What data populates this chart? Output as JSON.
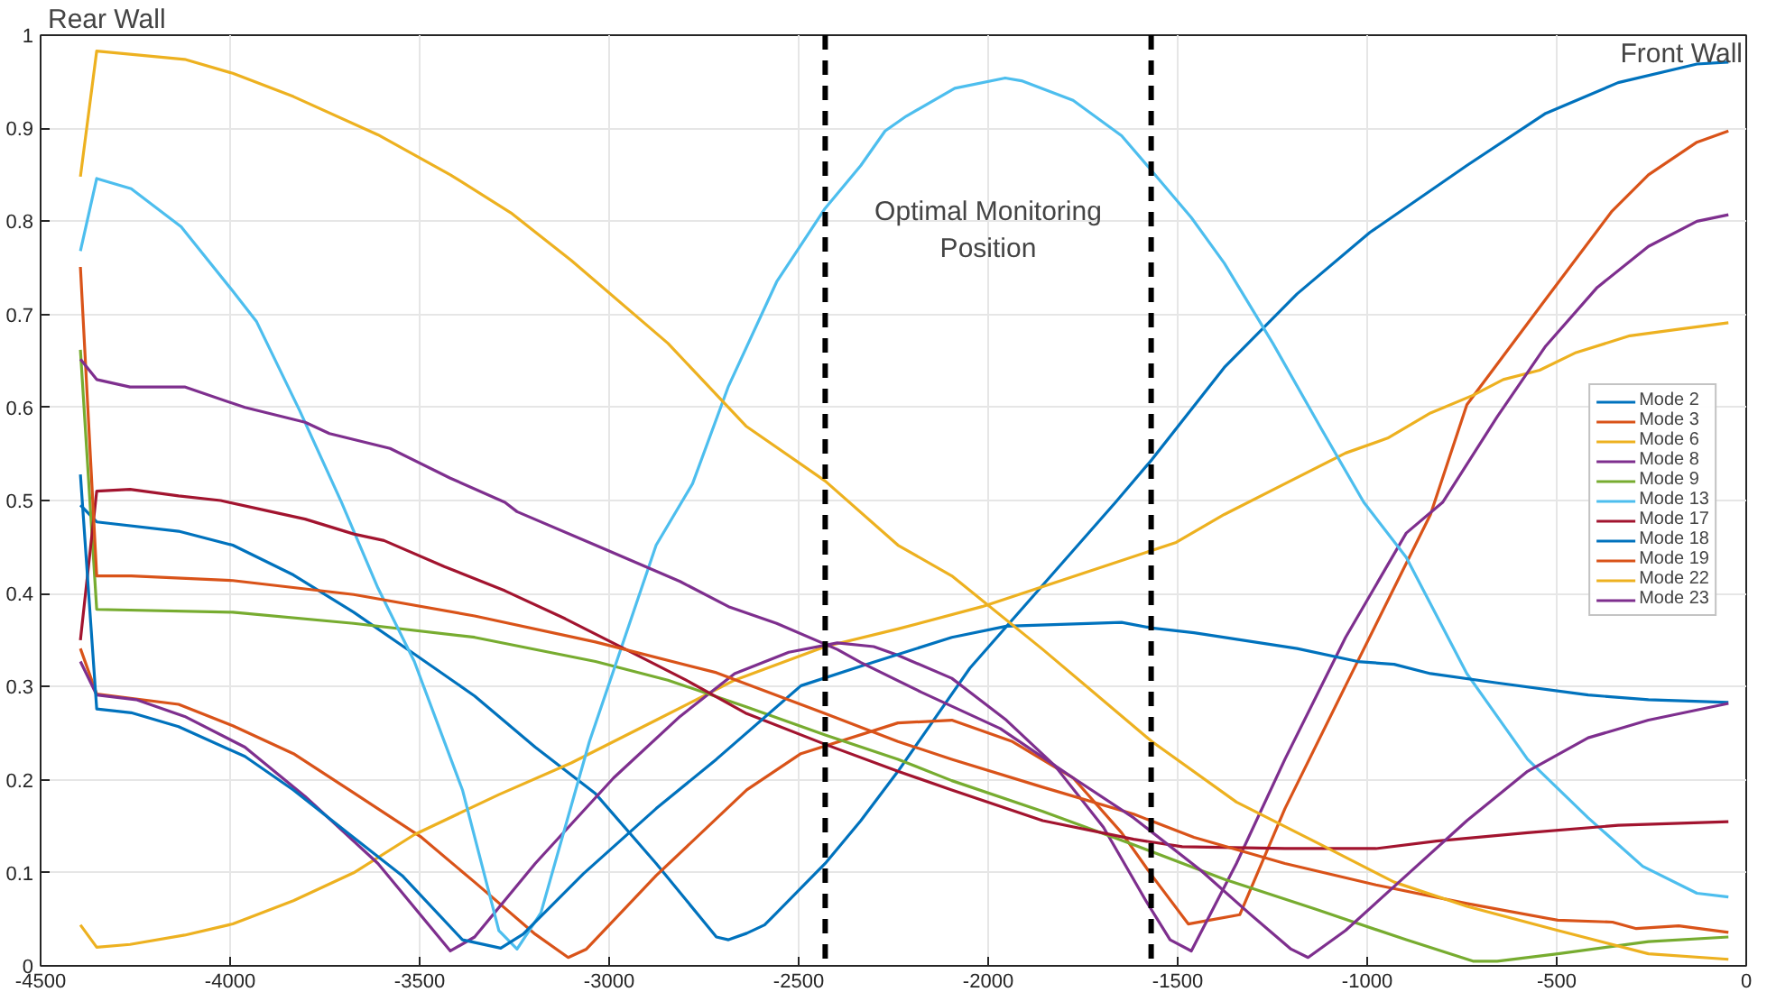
{
  "chart_data": {
    "type": "line",
    "xlim": [
      -4500,
      0
    ],
    "ylim": [
      0,
      1
    ],
    "xticks": [
      -4500,
      -4000,
      -3500,
      -3000,
      -2500,
      -2000,
      -1500,
      -1000,
      -500,
      0
    ],
    "yticks": [
      0,
      0.1,
      0.2,
      0.3,
      0.4,
      0.5,
      0.6,
      0.7,
      0.8,
      0.9,
      1
    ],
    "grid": true,
    "legend": "right",
    "annotations": [
      "Rear Wall",
      "Front Wall",
      "Optimal Monitoring Position"
    ],
    "ref_lines": [
      {
        "axis": "x",
        "value": -2430,
        "color": "#000000",
        "line_style": "dashed"
      },
      {
        "axis": "x",
        "value": -1570,
        "color": "#000000",
        "line_style": "dashed"
      }
    ],
    "series": [
      {
        "name": "Mode 2",
        "color": "#0072bd",
        "x": [
          -4395,
          -4352,
          -4136,
          -3993,
          -3833,
          -3674,
          -3514,
          -3355,
          -3195,
          -3036,
          -2876,
          -2717,
          -2685,
          -2637,
          -2590,
          -2558,
          -2430,
          -2336,
          -2238,
          -2048,
          -1664,
          -1568,
          -1377,
          -1185,
          -993,
          -737,
          -529,
          -338,
          -130,
          -47
        ],
        "values": [
          0.495,
          0.477,
          0.467,
          0.452,
          0.42,
          0.38,
          0.335,
          0.29,
          0.235,
          0.185,
          0.11,
          0.031,
          0.028,
          0.035,
          0.044,
          0.057,
          0.11,
          0.156,
          0.209,
          0.32,
          0.498,
          0.544,
          0.643,
          0.722,
          0.788,
          0.86,
          0.916,
          0.949,
          0.969,
          0.971
        ]
      },
      {
        "name": "Mode 3",
        "color": "#d95319",
        "x": [
          -4395,
          -4352,
          -4136,
          -3993,
          -3833,
          -3674,
          -3498,
          -3355,
          -3195,
          -3108,
          -3060,
          -2876,
          -2637,
          -2494,
          -2238,
          -2096,
          -1936,
          -1776,
          -1648,
          -1568,
          -1472,
          -1336,
          -1217,
          -1057,
          -833,
          -737,
          -537,
          -354,
          -258,
          -130,
          -47
        ],
        "values": [
          0.341,
          0.292,
          0.281,
          0.258,
          0.228,
          0.186,
          0.139,
          0.09,
          0.034,
          0.009,
          0.018,
          0.097,
          0.189,
          0.228,
          0.261,
          0.264,
          0.241,
          0.202,
          0.143,
          0.097,
          0.045,
          0.055,
          0.169,
          0.301,
          0.485,
          0.603,
          0.712,
          0.811,
          0.85,
          0.885,
          0.897
        ]
      },
      {
        "name": "Mode 6",
        "color": "#edb120",
        "x": [
          -4395,
          -4352,
          -4264,
          -4120,
          -3993,
          -3833,
          -3674,
          -3514,
          -3291,
          -3100,
          -2876,
          -2669,
          -2430,
          -2238,
          -2016,
          -1696,
          -1504,
          -1377,
          -1217,
          -1057,
          -946,
          -833,
          -721,
          -641,
          -545,
          -449,
          -307,
          -179,
          -47
        ],
        "values": [
          0.044,
          0.02,
          0.023,
          0.033,
          0.045,
          0.07,
          0.1,
          0.141,
          0.184,
          0.218,
          0.264,
          0.307,
          0.343,
          0.362,
          0.386,
          0.429,
          0.455,
          0.485,
          0.518,
          0.551,
          0.567,
          0.594,
          0.613,
          0.63,
          0.64,
          0.659,
          0.677,
          0.684,
          0.691
        ]
      },
      {
        "name": "Mode 8",
        "color": "#7e2f8e",
        "x": [
          -4395,
          -4352,
          -4248,
          -4120,
          -3961,
          -3802,
          -3610,
          -3419,
          -3355,
          -3195,
          -2988,
          -2813,
          -2669,
          -2526,
          -2398,
          -2302,
          -2240,
          -2096,
          -1952,
          -1824,
          -1696,
          -1584,
          -1520,
          -1464,
          -1345,
          -1217,
          -1057,
          -897,
          -801,
          -657,
          -529,
          -393,
          -258,
          -130,
          -47
        ],
        "values": [
          0.327,
          0.291,
          0.286,
          0.268,
          0.235,
          0.182,
          0.11,
          0.016,
          0.031,
          0.11,
          0.202,
          0.268,
          0.314,
          0.337,
          0.347,
          0.343,
          0.334,
          0.309,
          0.264,
          0.215,
          0.149,
          0.07,
          0.028,
          0.016,
          0.11,
          0.222,
          0.353,
          0.465,
          0.498,
          0.59,
          0.666,
          0.729,
          0.773,
          0.8,
          0.807
        ]
      },
      {
        "name": "Mode 9",
        "color": "#77ac30",
        "x": [
          -4395,
          -4352,
          -3993,
          -3674,
          -3355,
          -3036,
          -2845,
          -2637,
          -2430,
          -2238,
          -2096,
          -1856,
          -1616,
          -1377,
          -1137,
          -897,
          -721,
          -657,
          -497,
          -258,
          -47
        ],
        "values": [
          0.662,
          0.383,
          0.38,
          0.368,
          0.353,
          0.327,
          0.307,
          0.278,
          0.248,
          0.222,
          0.199,
          0.166,
          0.13,
          0.093,
          0.061,
          0.028,
          0.005,
          0.005,
          0.013,
          0.026,
          0.031
        ]
      },
      {
        "name": "Mode 13",
        "color": "#4dbeee",
        "x": [
          -4395,
          -4352,
          -4261,
          -4129,
          -3993,
          -3930,
          -3817,
          -3706,
          -3610,
          -3514,
          -3387,
          -3291,
          -3243,
          -3180,
          -3052,
          -2876,
          -2780,
          -2685,
          -2558,
          -2430,
          -2336,
          -2272,
          -2216,
          -2088,
          -1955,
          -1912,
          -1776,
          -1648,
          -1568,
          -1464,
          -1377,
          -1249,
          -1121,
          -1009,
          -897,
          -737,
          -577,
          -417,
          -273,
          -130,
          -47
        ],
        "values": [
          0.768,
          0.846,
          0.835,
          0.794,
          0.725,
          0.692,
          0.597,
          0.498,
          0.406,
          0.327,
          0.189,
          0.038,
          0.018,
          0.057,
          0.241,
          0.452,
          0.518,
          0.623,
          0.735,
          0.814,
          0.86,
          0.897,
          0.913,
          0.943,
          0.954,
          0.951,
          0.93,
          0.892,
          0.854,
          0.804,
          0.755,
          0.669,
          0.577,
          0.498,
          0.439,
          0.314,
          0.222,
          0.159,
          0.107,
          0.078,
          0.074
        ]
      },
      {
        "name": "Mode 17",
        "color": "#a2142f",
        "x": [
          -4395,
          -4352,
          -4264,
          -4136,
          -4025,
          -3913,
          -3802,
          -3674,
          -3594,
          -3435,
          -3275,
          -3116,
          -2956,
          -2797,
          -2637,
          -2430,
          -2238,
          -2096,
          -1856,
          -1616,
          -1488,
          -1217,
          -977,
          -817,
          -577,
          -338,
          -47
        ],
        "values": [
          0.35,
          0.51,
          0.512,
          0.505,
          0.5,
          0.49,
          0.48,
          0.464,
          0.457,
          0.429,
          0.403,
          0.373,
          0.34,
          0.307,
          0.271,
          0.238,
          0.209,
          0.189,
          0.156,
          0.136,
          0.128,
          0.126,
          0.126,
          0.134,
          0.143,
          0.151,
          0.155
        ]
      },
      {
        "name": "Mode 18",
        "color": "#0072bd",
        "x": [
          -4395,
          -4352,
          -4261,
          -4136,
          -3961,
          -3833,
          -3690,
          -3546,
          -3387,
          -3286,
          -3227,
          -3068,
          -2876,
          -2717,
          -2494,
          -2336,
          -2096,
          -1952,
          -1648,
          -1568,
          -1457,
          -1185,
          -1025,
          -929,
          -833,
          -657,
          -417,
          -258,
          -47
        ],
        "values": [
          0.528,
          0.276,
          0.272,
          0.257,
          0.225,
          0.189,
          0.143,
          0.097,
          0.028,
          0.019,
          0.034,
          0.099,
          0.169,
          0.222,
          0.301,
          0.322,
          0.353,
          0.365,
          0.369,
          0.363,
          0.358,
          0.341,
          0.327,
          0.324,
          0.314,
          0.304,
          0.291,
          0.286,
          0.283
        ]
      },
      {
        "name": "Mode 19",
        "color": "#d95319",
        "x": [
          -4395,
          -4352,
          -4261,
          -3993,
          -3674,
          -3355,
          -3036,
          -2717,
          -2430,
          -2238,
          -2096,
          -1856,
          -1616,
          -1457,
          -1217,
          -977,
          -737,
          -497,
          -353,
          -290,
          -178,
          -47
        ],
        "values": [
          0.751,
          0.419,
          0.419,
          0.414,
          0.399,
          0.376,
          0.348,
          0.315,
          0.271,
          0.241,
          0.222,
          0.192,
          0.163,
          0.138,
          0.11,
          0.087,
          0.067,
          0.049,
          0.047,
          0.04,
          0.043,
          0.036
        ]
      },
      {
        "name": "Mode 22",
        "color": "#edb120",
        "x": [
          -4395,
          -4352,
          -4120,
          -3993,
          -3833,
          -3610,
          -3419,
          -3259,
          -3100,
          -2845,
          -2639,
          -2430,
          -2238,
          -2096,
          -1856,
          -1568,
          -1345,
          -1121,
          -929,
          -737,
          -497,
          -258,
          -47
        ],
        "values": [
          0.848,
          0.983,
          0.974,
          0.959,
          0.934,
          0.893,
          0.85,
          0.809,
          0.758,
          0.669,
          0.58,
          0.521,
          0.452,
          0.419,
          0.34,
          0.241,
          0.176,
          0.13,
          0.09,
          0.064,
          0.038,
          0.013,
          0.007
        ]
      },
      {
        "name": "Mode 23",
        "color": "#7e2f8e",
        "x": [
          -4395,
          -4352,
          -4264,
          -4120,
          -3961,
          -3802,
          -3738,
          -3578,
          -3419,
          -3275,
          -3243,
          -3036,
          -2813,
          -2685,
          -2558,
          -2398,
          -2336,
          -2176,
          -1968,
          -1776,
          -1616,
          -1440,
          -1313,
          -1201,
          -1156,
          -1057,
          -897,
          -737,
          -577,
          -417,
          -258,
          -47
        ],
        "values": [
          0.652,
          0.63,
          0.622,
          0.622,
          0.6,
          0.584,
          0.572,
          0.556,
          0.524,
          0.498,
          0.488,
          0.452,
          0.413,
          0.386,
          0.368,
          0.34,
          0.326,
          0.294,
          0.255,
          0.202,
          0.159,
          0.103,
          0.057,
          0.018,
          0.009,
          0.038,
          0.097,
          0.156,
          0.209,
          0.245,
          0.264,
          0.282
        ]
      }
    ]
  }
}
